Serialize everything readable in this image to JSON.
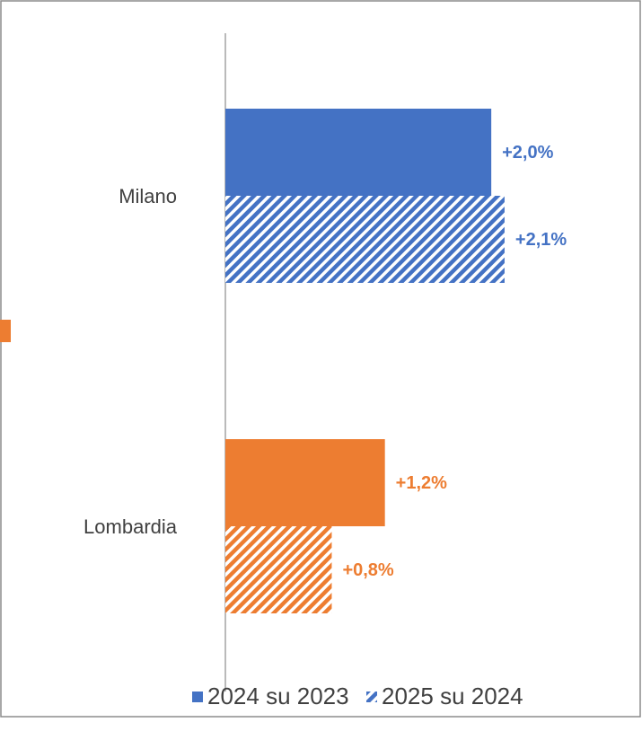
{
  "chart_data": {
    "type": "hbar",
    "categories": [
      "Milano",
      "Lombardia"
    ],
    "series": [
      {
        "name": "2024 su 2023",
        "pattern": "solid",
        "colors": [
          "#4472c4",
          "#ed7d31"
        ],
        "values": [
          2.0,
          1.2
        ],
        "value_labels": [
          "+2,0%",
          "+1,2%"
        ]
      },
      {
        "name": "2025 su 2024",
        "pattern": "hatch",
        "colors": [
          "#4472c4",
          "#ed7d31"
        ],
        "values": [
          2.1,
          0.8
        ],
        "value_labels": [
          "+2,1%",
          "+0,8%"
        ]
      }
    ],
    "xlim": [
      0,
      3.1
    ],
    "legend": "bottom"
  }
}
